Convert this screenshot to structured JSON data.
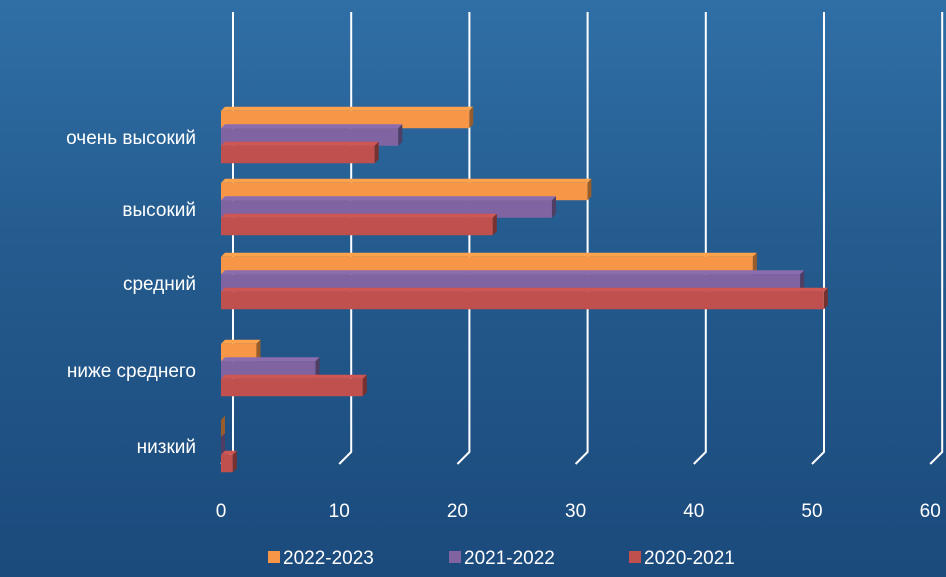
{
  "chart_data": {
    "type": "bar",
    "orientation": "horizontal",
    "categories": [
      "низкий",
      "ниже среднего",
      "средний",
      "высокий",
      "очень высокий"
    ],
    "series": [
      {
        "name": "2022-2023",
        "values": [
          0,
          3,
          45,
          31,
          21
        ],
        "color": "#f79646"
      },
      {
        "name": "2021-2022",
        "values": [
          0,
          8,
          49,
          28,
          15
        ],
        "color": "#8064a2"
      },
      {
        "name": "2020-2021",
        "values": [
          1,
          12,
          51,
          23,
          13
        ],
        "color": "#c0504d"
      }
    ],
    "xticks": [
      "0",
      "10",
      "20",
      "30",
      "40",
      "50",
      "60"
    ],
    "xlim": [
      0,
      60
    ],
    "grid": true,
    "legend": "bottom",
    "text_color": "#ffffff",
    "grid_color": "#ffffff"
  }
}
